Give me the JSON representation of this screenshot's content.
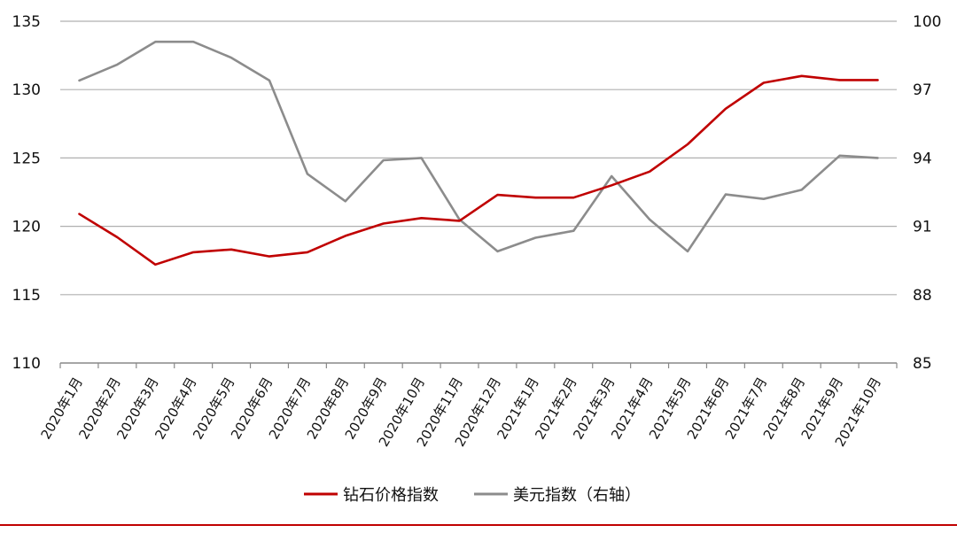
{
  "chart_data": {
    "type": "line",
    "categories": [
      "2020年1月",
      "2020年2月",
      "2020年3月",
      "2020年4月",
      "2020年5月",
      "2020年6月",
      "2020年7月",
      "2020年8月",
      "2020年9月",
      "2020年10月",
      "2020年11月",
      "2020年12月",
      "2021年1月",
      "2021年2月",
      "2021年3月",
      "2021年4月",
      "2021年5月",
      "2021年6月",
      "2021年7月",
      "2021年8月",
      "2021年9月",
      "2021年10月"
    ],
    "series": [
      {
        "name": "钻石价格指数",
        "axis": "left",
        "color": "#c00000",
        "values": [
          120.9,
          119.2,
          117.2,
          118.1,
          118.3,
          117.8,
          118.1,
          119.3,
          120.2,
          120.6,
          120.4,
          122.3,
          122.1,
          122.1,
          123.0,
          124.0,
          126.0,
          128.6,
          130.5,
          131.0,
          130.7,
          130.7
        ]
      },
      {
        "name": "美元指数（右轴）",
        "axis": "right",
        "color": "#8c8c8c",
        "values": [
          97.4,
          98.1,
          99.1,
          99.1,
          98.4,
          97.4,
          93.3,
          92.1,
          93.9,
          94.0,
          91.3,
          89.9,
          90.5,
          90.8,
          93.2,
          91.3,
          89.9,
          92.4,
          92.2,
          92.6,
          94.1,
          94.0
        ]
      }
    ],
    "y_left": {
      "ticks": [
        "110",
        "115",
        "120",
        "125",
        "130",
        "135"
      ],
      "ylim": [
        110,
        135
      ]
    },
    "y_right": {
      "ticks": [
        "85",
        "88",
        "91",
        "94",
        "97",
        "100"
      ],
      "ylim": [
        85,
        100
      ]
    },
    "grid": true,
    "legend_position": "bottom",
    "title": "",
    "xlabel": "",
    "ylabel": ""
  }
}
